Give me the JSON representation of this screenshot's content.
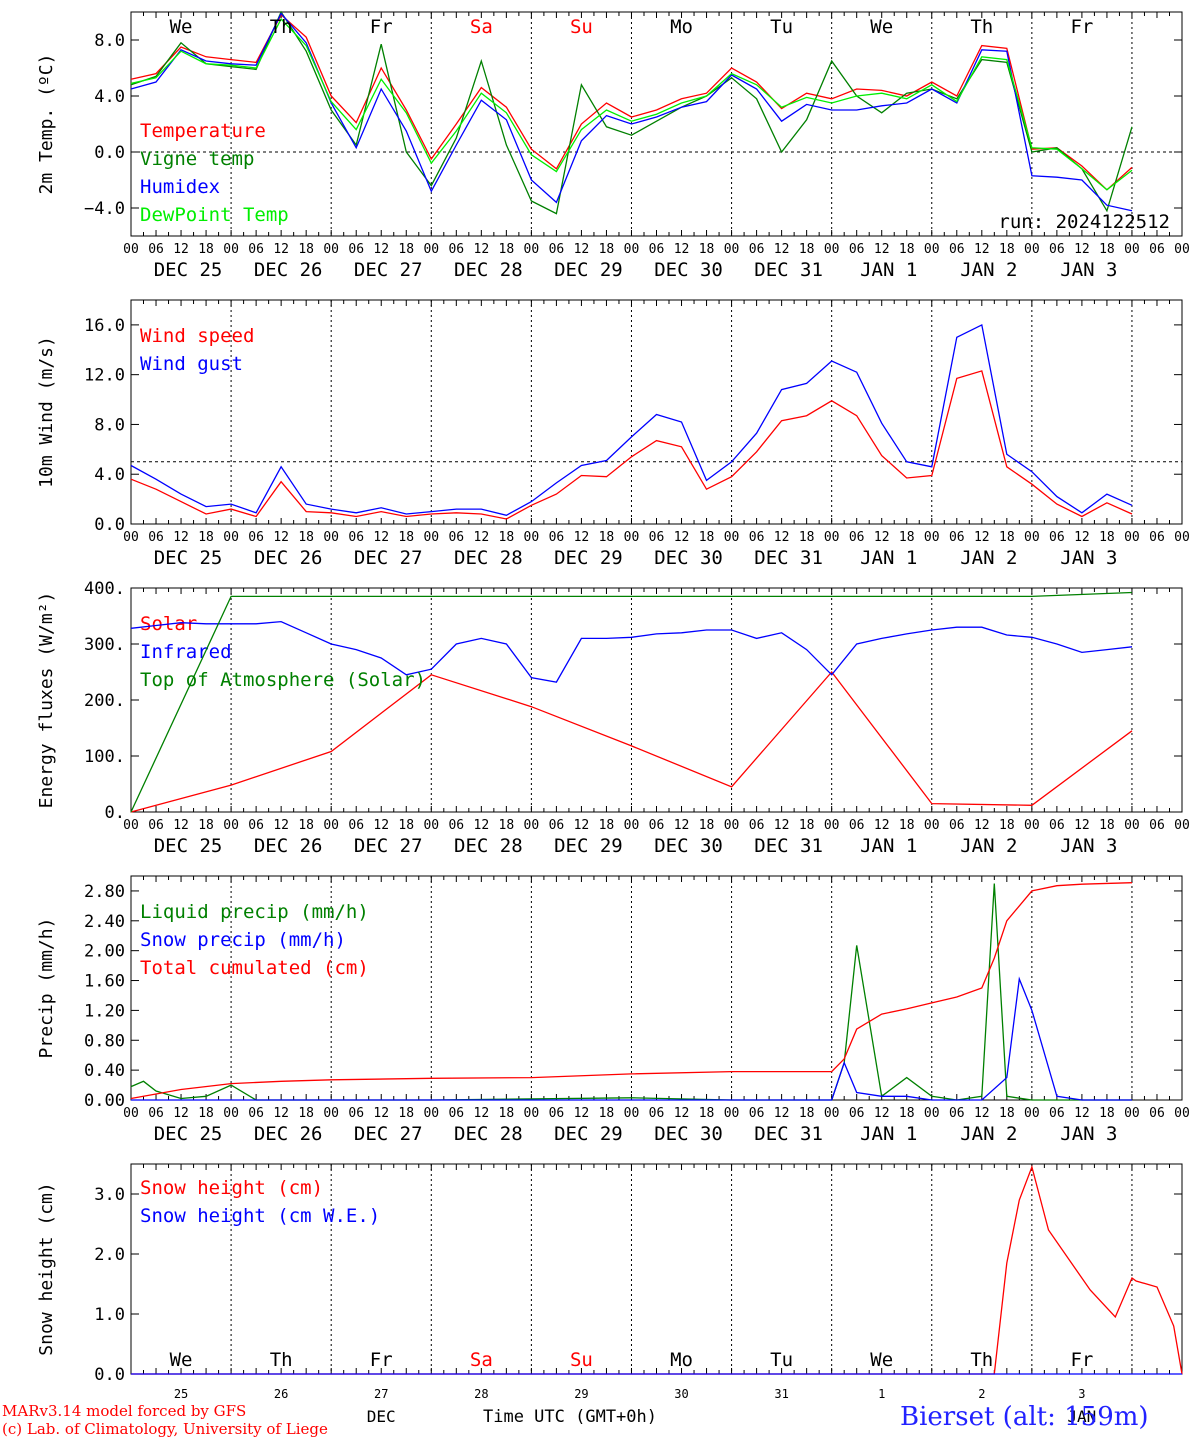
{
  "meteogram": {
    "run_label": "run: 2024122512",
    "day_names": [
      "We",
      "Th",
      "Fr",
      "Sa",
      "Su",
      "Mo",
      "Tu",
      "We",
      "Th",
      "Fr"
    ],
    "weekend_color": "#ff0000",
    "hour_labels": [
      "00",
      "06",
      "12",
      "18"
    ],
    "end_hour_label": "00",
    "date_labels": [
      "DEC 25",
      "DEC 26",
      "DEC 27",
      "DEC 28",
      "DEC 29",
      "DEC 30",
      "DEC 31",
      "JAN  1",
      "JAN  2",
      "JAN  3"
    ],
    "bottom_day_numbers": [
      "25",
      "26",
      "27",
      "28",
      "29",
      "30",
      "31",
      "1",
      "2",
      "3"
    ],
    "bottom_month_labels": [
      "DEC",
      "JAN"
    ],
    "x_axis_title": "Time UTC (GMT+0h)",
    "footer_lines": [
      "MARv3.14 model forced by GFS",
      "(c) Lab. of Climatology, University of Liege"
    ],
    "station": "Bierset (alt: 159m)"
  },
  "chart_data": [
    {
      "type": "line",
      "ylabel": "2m Temp. (ºC)",
      "yticks": [
        "8.0",
        "4.0",
        "0.0",
        "−4.0"
      ],
      "yticks_values": [
        8,
        4,
        0,
        -4
      ],
      "ylim": [
        -6,
        10
      ],
      "reference_line": 0,
      "x_hours_from": "DEC 25 00 UTC",
      "series": [
        {
          "name": "Temperature",
          "color": "#ff0000",
          "x": [
            0,
            6,
            12,
            18,
            24,
            30,
            36,
            42,
            48,
            54,
            60,
            66,
            72,
            78,
            84,
            90,
            96,
            102,
            108,
            114,
            120,
            126,
            132,
            138,
            144,
            150,
            156,
            162,
            168,
            174,
            180,
            186,
            192,
            198,
            204,
            210,
            216,
            222,
            228,
            234,
            240
          ],
          "values": [
            5.2,
            5.6,
            7.5,
            6.8,
            6.6,
            6.4,
            9.8,
            8.2,
            4.0,
            2.1,
            6.0,
            3.0,
            -0.5,
            2.0,
            4.6,
            3.2,
            0.2,
            -1.2,
            2.0,
            3.5,
            2.5,
            3.0,
            3.8,
            4.2,
            6.0,
            5.0,
            3.1,
            4.2,
            3.8,
            4.5,
            4.4,
            4.0,
            5.0,
            4.0,
            7.6,
            7.4,
            0.2,
            0.3,
            -1.0,
            -2.7,
            -1.1
          ]
        },
        {
          "name": "Vigne temp",
          "color": "#008000",
          "x": [
            0,
            6,
            12,
            18,
            24,
            30,
            36,
            42,
            48,
            54,
            60,
            66,
            72,
            78,
            84,
            90,
            96,
            102,
            108,
            114,
            120,
            126,
            132,
            138,
            144,
            150,
            156,
            162,
            168,
            174,
            180,
            186,
            192,
            198,
            204,
            210,
            216,
            222,
            228,
            234,
            240
          ],
          "values": [
            4.8,
            5.4,
            7.8,
            6.3,
            6.1,
            5.9,
            10.0,
            7.2,
            3.0,
            0.5,
            7.7,
            0.0,
            -2.4,
            1.0,
            6.5,
            0.5,
            -3.5,
            -4.4,
            4.8,
            1.8,
            1.2,
            2.2,
            3.2,
            4.0,
            5.3,
            3.8,
            0.0,
            2.3,
            6.5,
            4.0,
            2.8,
            4.2,
            4.5,
            3.8,
            6.6,
            6.4,
            0.0,
            0.3,
            -1.2,
            -4.2,
            1.8
          ]
        },
        {
          "name": "Humidex",
          "color": "#0000ff",
          "x": [
            0,
            6,
            12,
            18,
            24,
            30,
            36,
            42,
            48,
            54,
            60,
            66,
            72,
            78,
            84,
            90,
            96,
            102,
            108,
            114,
            120,
            126,
            132,
            138,
            144,
            150,
            156,
            162,
            168,
            174,
            180,
            186,
            192,
            198,
            204,
            210,
            216,
            222,
            228,
            234,
            240
          ],
          "values": [
            4.5,
            5.0,
            7.3,
            6.5,
            6.3,
            6.2,
            9.9,
            7.8,
            3.5,
            0.3,
            4.5,
            1.5,
            -2.8,
            0.5,
            3.7,
            2.3,
            -2.0,
            -3.6,
            0.8,
            2.6,
            2.0,
            2.5,
            3.2,
            3.6,
            5.5,
            4.5,
            2.2,
            3.4,
            3.0,
            3.0,
            3.3,
            3.5,
            4.5,
            3.5,
            7.3,
            7.2,
            -1.7,
            -1.8,
            -2.0,
            -3.8,
            -4.2
          ]
        },
        {
          "name": "DewPoint Temp",
          "color": "#00ee00",
          "x": [
            0,
            6,
            12,
            18,
            24,
            30,
            36,
            42,
            48,
            54,
            60,
            66,
            72,
            78,
            84,
            90,
            96,
            102,
            108,
            114,
            120,
            126,
            132,
            138,
            144,
            150,
            156,
            162,
            168,
            174,
            180,
            186,
            192,
            198,
            204,
            210,
            216,
            222,
            228,
            234,
            240
          ],
          "values": [
            4.9,
            5.3,
            7.2,
            6.3,
            6.2,
            6.0,
            9.5,
            7.6,
            3.6,
            1.6,
            5.2,
            2.8,
            -0.8,
            1.5,
            4.2,
            2.8,
            -0.2,
            -1.4,
            1.6,
            3.0,
            2.2,
            2.7,
            3.5,
            4.0,
            5.6,
            4.8,
            3.2,
            3.9,
            3.5,
            4.0,
            4.2,
            3.8,
            4.8,
            3.6,
            6.8,
            6.6,
            0.3,
            0.2,
            -1.2,
            -2.7,
            -1.3
          ]
        }
      ]
    },
    {
      "type": "line",
      "ylabel": "10m Wind (m/s)",
      "yticks": [
        "16.0",
        "12.0",
        "8.0",
        "4.0",
        "0.0"
      ],
      "yticks_values": [
        16,
        12,
        8,
        4,
        0
      ],
      "ylim": [
        0,
        18
      ],
      "reference_line": 5,
      "series": [
        {
          "name": "Wind speed",
          "color": "#ff0000",
          "x": [
            0,
            6,
            12,
            18,
            24,
            30,
            36,
            42,
            48,
            54,
            60,
            66,
            72,
            78,
            84,
            90,
            96,
            102,
            108,
            114,
            120,
            126,
            132,
            138,
            144,
            150,
            156,
            162,
            168,
            174,
            180,
            186,
            192,
            198,
            204,
            210,
            216,
            222,
            228,
            234,
            240
          ],
          "values": [
            3.6,
            2.8,
            1.8,
            0.8,
            1.2,
            0.6,
            3.4,
            1.0,
            0.9,
            0.6,
            1.0,
            0.6,
            0.8,
            0.9,
            0.8,
            0.4,
            1.5,
            2.4,
            3.9,
            3.8,
            5.4,
            6.7,
            6.2,
            2.8,
            3.8,
            5.8,
            8.3,
            8.7,
            9.9,
            8.7,
            5.5,
            3.7,
            3.9,
            11.7,
            12.3,
            4.6,
            3.2,
            1.6,
            0.6,
            1.7,
            0.8
          ]
        },
        {
          "name": "Wind gust",
          "color": "#0000ff",
          "x": [
            0,
            6,
            12,
            18,
            24,
            30,
            36,
            42,
            48,
            54,
            60,
            66,
            72,
            78,
            84,
            90,
            96,
            102,
            108,
            114,
            120,
            126,
            132,
            138,
            144,
            150,
            156,
            162,
            168,
            174,
            180,
            186,
            192,
            198,
            204,
            210,
            216,
            222,
            228,
            234,
            240
          ],
          "values": [
            4.7,
            3.6,
            2.4,
            1.4,
            1.6,
            0.9,
            4.6,
            1.6,
            1.2,
            0.9,
            1.3,
            0.8,
            1.0,
            1.2,
            1.2,
            0.7,
            1.8,
            3.3,
            4.7,
            5.1,
            7.0,
            8.8,
            8.2,
            3.5,
            5.0,
            7.3,
            10.8,
            11.3,
            13.1,
            12.2,
            8.1,
            5.0,
            4.6,
            15.0,
            16.0,
            5.6,
            4.2,
            2.2,
            0.9,
            2.4,
            1.5
          ]
        }
      ]
    },
    {
      "type": "line",
      "ylabel": "Energy fluxes (W/m²)",
      "yticks": [
        "400.",
        "300.",
        "200.",
        "100.",
        "0."
      ],
      "yticks_values": [
        400,
        300,
        200,
        100,
        0
      ],
      "ylim": [
        0,
        400
      ],
      "series": [
        {
          "name": "Solar",
          "color": "#ff0000",
          "x": [
            0,
            24,
            48,
            72,
            96,
            120,
            144,
            168,
            192,
            216,
            240
          ],
          "values": [
            0,
            48,
            108,
            245,
            188,
            118,
            45,
            250,
            15,
            12,
            145
          ]
        },
        {
          "name": "Infrared",
          "color": "#0000ff",
          "x": [
            0,
            6,
            12,
            18,
            24,
            30,
            36,
            42,
            48,
            54,
            60,
            66,
            72,
            78,
            84,
            90,
            96,
            102,
            108,
            114,
            120,
            126,
            132,
            138,
            144,
            150,
            156,
            162,
            168,
            174,
            180,
            186,
            192,
            198,
            204,
            210,
            216,
            222,
            228,
            234,
            240
          ],
          "values": [
            328,
            333,
            338,
            336,
            336,
            336,
            340,
            320,
            300,
            290,
            275,
            245,
            255,
            300,
            310,
            300,
            240,
            232,
            310,
            310,
            312,
            318,
            320,
            325,
            325,
            310,
            320,
            290,
            245,
            300,
            310,
            318,
            325,
            330,
            330,
            316,
            312,
            300,
            285,
            290,
            295
          ]
        },
        {
          "name": "Top of Atmosphere (Solar)",
          "color": "#008000",
          "x": [
            0,
            24,
            48,
            72,
            96,
            120,
            144,
            168,
            192,
            216,
            240
          ],
          "values": [
            0,
            385,
            385,
            385,
            385,
            385,
            385,
            385,
            385,
            385,
            392
          ]
        }
      ]
    },
    {
      "type": "line",
      "ylabel": "Precip (mm/h)",
      "yticks": [
        "2.80",
        "2.40",
        "2.00",
        "1.60",
        "1.20",
        "0.80",
        "0.40",
        "0.00"
      ],
      "yticks_values": [
        2.8,
        2.4,
        2.0,
        1.6,
        1.2,
        0.8,
        0.4,
        0.0
      ],
      "ylim": [
        0,
        3.0
      ],
      "series": [
        {
          "name": "Liquid precip (mm/h)",
          "color": "#008000",
          "x": [
            0,
            3,
            6,
            12,
            18,
            24,
            30,
            36,
            72,
            120,
            144,
            168,
            168,
            171,
            174,
            180,
            186,
            192,
            198,
            204,
            207,
            210,
            216,
            240
          ],
          "values": [
            0.18,
            0.25,
            0.12,
            0.02,
            0.05,
            0.2,
            0.0,
            0.0,
            0.0,
            0.03,
            0.0,
            0.0,
            0.0,
            0.5,
            2.07,
            0.05,
            0.3,
            0.05,
            0.0,
            0.05,
            2.9,
            0.05,
            0.0,
            0.0
          ]
        },
        {
          "name": "Snow precip (mm/h)",
          "color": "#0000ff",
          "x": [
            0,
            168,
            171,
            174,
            180,
            186,
            192,
            198,
            204,
            210,
            213,
            216,
            222,
            228,
            240
          ],
          "values": [
            0.0,
            0.0,
            0.5,
            0.1,
            0.05,
            0.05,
            0.0,
            0.0,
            0.0,
            0.3,
            1.62,
            1.2,
            0.05,
            0.0,
            0.0
          ]
        },
        {
          "name": "Total cumulated (cm)",
          "color": "#ff0000",
          "x": [
            0,
            12,
            24,
            36,
            48,
            72,
            96,
            120,
            144,
            168,
            171,
            174,
            180,
            186,
            192,
            198,
            204,
            207,
            210,
            216,
            222,
            228,
            240
          ],
          "values": [
            0.02,
            0.14,
            0.22,
            0.25,
            0.27,
            0.29,
            0.3,
            0.35,
            0.38,
            0.38,
            0.55,
            0.95,
            1.15,
            1.22,
            1.3,
            1.38,
            1.5,
            1.9,
            2.4,
            2.8,
            2.87,
            2.89,
            2.91
          ]
        }
      ]
    },
    {
      "type": "line",
      "ylabel": "Snow height (cm)",
      "yticks": [
        "3.0",
        "2.0",
        "1.0",
        "0.0"
      ],
      "yticks_values": [
        3.0,
        2.0,
        1.0,
        0.0
      ],
      "ylim": [
        0,
        3.5
      ],
      "series": [
        {
          "name": "Snow height (cm)",
          "color": "#ff0000",
          "x": [
            0,
            192,
            207,
            210,
            213,
            216,
            220,
            230,
            236,
            240,
            241,
            246,
            250,
            252
          ],
          "values": [
            0,
            0,
            0,
            1.85,
            2.9,
            3.45,
            2.4,
            1.4,
            0.95,
            1.6,
            1.55,
            1.45,
            0.8,
            0
          ]
        },
        {
          "name": "Snow height (cm W.E.)",
          "color": "#0000ff",
          "x": [
            0,
            252
          ],
          "values": [
            0,
            0
          ]
        }
      ]
    }
  ]
}
